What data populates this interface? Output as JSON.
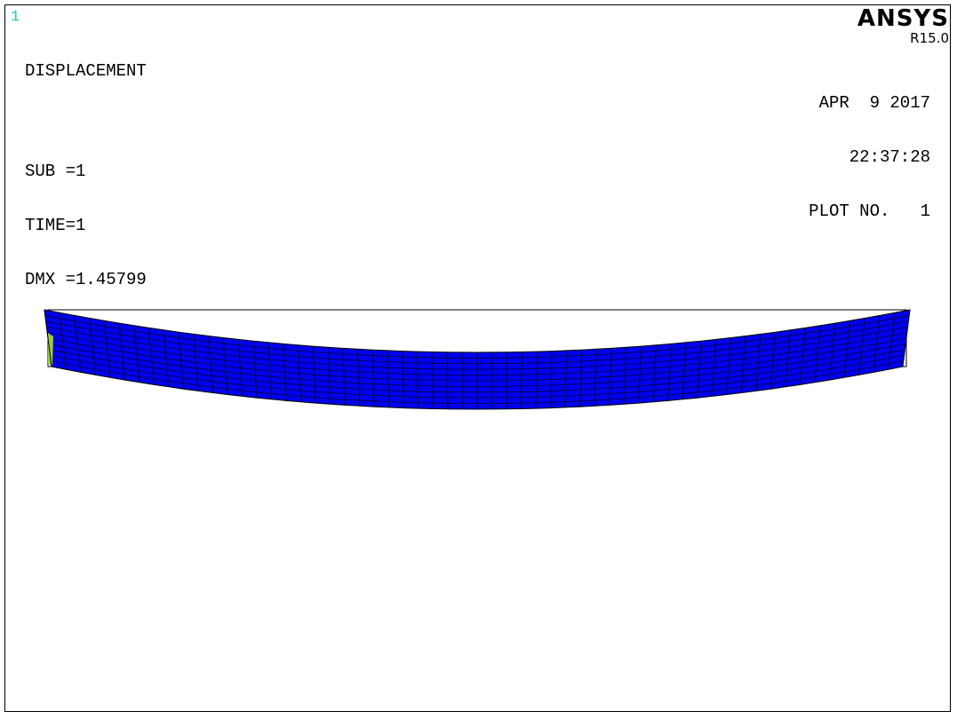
{
  "window_number": "1",
  "title": "DISPLACEMENT",
  "sub": "SUB =1",
  "time": "TIME=1",
  "dmx": "DMX =1.45799",
  "brand": {
    "name": "ANSYS",
    "version": "R15.0"
  },
  "date": "APR  9 2017",
  "clock": "22:37:28",
  "plot_no": "PLOT NO.   1",
  "colors": {
    "beam_fill": "#0000ee",
    "mesh_line": "#000000",
    "undeformed_edge": "#000000",
    "support_marker": "#9acd32",
    "window_number": "#20c8c8"
  },
  "model": {
    "element_columns": 58,
    "element_layers": 10,
    "max_displacement": 1.45799
  }
}
